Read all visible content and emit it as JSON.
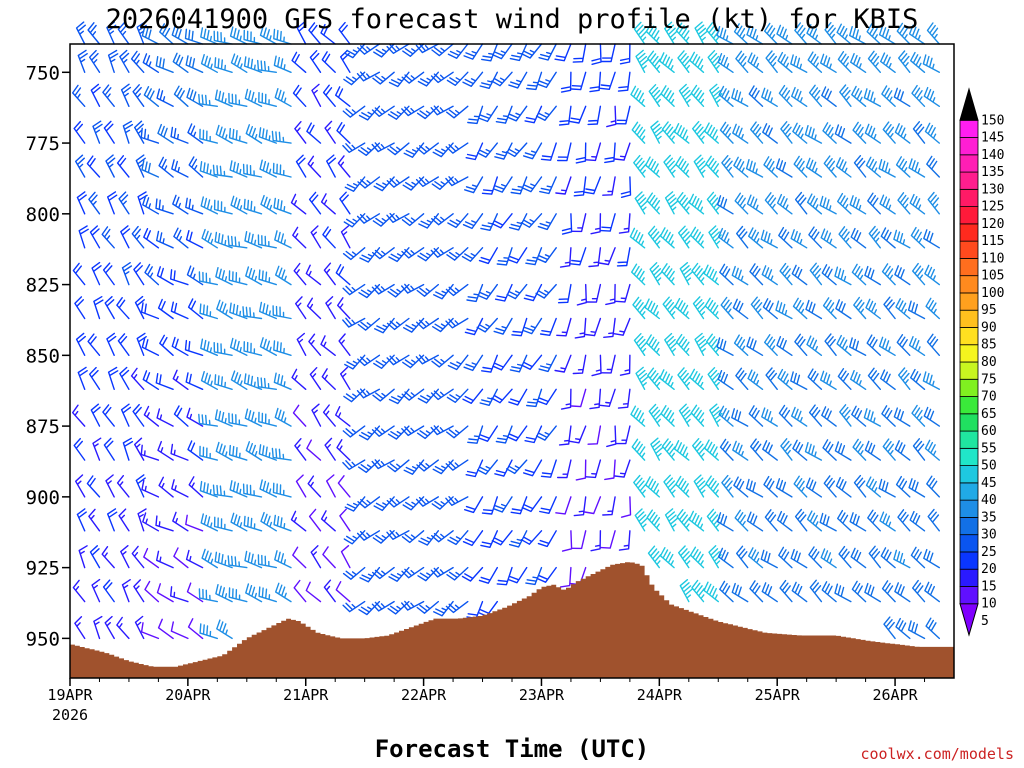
{
  "chart_data": {
    "type": "wind-barb-profile",
    "title": "2026041900 GFS forecast wind profile (kt) for KBIS",
    "xlabel": "Forecast Time (UTC)",
    "ylabel": "",
    "x_start_label_year": "2026",
    "xticks": [
      "19APR",
      "20APR",
      "21APR",
      "22APR",
      "23APR",
      "24APR",
      "25APR",
      "26APR"
    ],
    "xlim_days": [
      0,
      7.5
    ],
    "yticks": [
      750,
      775,
      800,
      825,
      850,
      875,
      900,
      925,
      950
    ],
    "ylim_hpa": [
      740,
      964
    ],
    "wind_levels_hpa": [
      740,
      750,
      762,
      775,
      787,
      800,
      812,
      825,
      837,
      850,
      862,
      875,
      887,
      900,
      912,
      925,
      937,
      950
    ],
    "time_step_hours": 3,
    "wind_regimes": [
      {
        "start_day": 0.0,
        "end_day": 0.7,
        "direction_deg": 330,
        "speed_kt_top": 25,
        "speed_kt_bottom": 15
      },
      {
        "start_day": 0.7,
        "end_day": 1.2,
        "direction_deg": 300,
        "speed_kt_top": 30,
        "speed_kt_bottom": 10
      },
      {
        "start_day": 1.2,
        "end_day": 1.9,
        "direction_deg": 290,
        "speed_kt_top": 35,
        "speed_kt_bottom": 35
      },
      {
        "start_day": 1.9,
        "end_day": 2.4,
        "direction_deg": 320,
        "speed_kt_top": 20,
        "speed_kt_bottom": 10
      },
      {
        "start_day": 2.4,
        "end_day": 3.4,
        "direction_deg": 230,
        "speed_kt_top": 25,
        "speed_kt_bottom": 25
      },
      {
        "start_day": 3.4,
        "end_day": 4.2,
        "direction_deg": 210,
        "speed_kt_top": 25,
        "speed_kt_bottom": 20
      },
      {
        "start_day": 4.2,
        "end_day": 4.8,
        "direction_deg": 190,
        "speed_kt_top": 20,
        "speed_kt_bottom": 10
      },
      {
        "start_day": 4.8,
        "end_day": 5.6,
        "direction_deg": 320,
        "speed_kt_top": 45,
        "speed_kt_bottom": 45
      },
      {
        "start_day": 5.6,
        "end_day": 7.5,
        "direction_deg": 310,
        "speed_kt_top": 35,
        "speed_kt_bottom": 30
      }
    ],
    "terrain_hpa": [
      [
        0.0,
        952
      ],
      [
        0.3,
        955
      ],
      [
        0.5,
        958
      ],
      [
        0.7,
        960
      ],
      [
        0.9,
        960
      ],
      [
        1.1,
        958
      ],
      [
        1.3,
        956
      ],
      [
        1.5,
        950
      ],
      [
        1.7,
        946
      ],
      [
        1.85,
        943
      ],
      [
        1.95,
        944
      ],
      [
        2.1,
        948
      ],
      [
        2.3,
        950
      ],
      [
        2.5,
        950
      ],
      [
        2.7,
        949
      ],
      [
        2.9,
        946
      ],
      [
        3.1,
        943
      ],
      [
        3.3,
        943
      ],
      [
        3.5,
        942
      ],
      [
        3.7,
        939
      ],
      [
        3.9,
        935
      ],
      [
        4.0,
        932
      ],
      [
        4.1,
        931
      ],
      [
        4.2,
        933
      ],
      [
        4.3,
        930
      ],
      [
        4.45,
        927
      ],
      [
        4.6,
        924
      ],
      [
        4.75,
        923
      ],
      [
        4.85,
        924
      ],
      [
        4.95,
        932
      ],
      [
        5.1,
        938
      ],
      [
        5.3,
        941
      ],
      [
        5.5,
        944
      ],
      [
        5.7,
        946
      ],
      [
        5.9,
        948
      ],
      [
        6.2,
        949
      ],
      [
        6.5,
        949
      ],
      [
        6.8,
        951
      ],
      [
        7.0,
        952
      ],
      [
        7.2,
        953
      ],
      [
        7.5,
        953
      ]
    ],
    "colorbar": {
      "min": 5,
      "max": 150,
      "step": 5,
      "labels": [
        5,
        10,
        15,
        20,
        25,
        30,
        35,
        40,
        45,
        50,
        55,
        60,
        65,
        70,
        75,
        80,
        85,
        90,
        95,
        100,
        105,
        110,
        115,
        120,
        125,
        130,
        135,
        140,
        145,
        150
      ],
      "colors": [
        "#8000ff",
        "#6010ff",
        "#2a1aff",
        "#0a36ff",
        "#0a55f0",
        "#1270e6",
        "#1e8ee6",
        "#20aae6",
        "#1ec8e0",
        "#20e6c8",
        "#20e6a0",
        "#20e060",
        "#3aea3a",
        "#80f020",
        "#c8f520",
        "#f5f51e",
        "#ffe020",
        "#ffc01e",
        "#ffa01e",
        "#ff8a1e",
        "#ff6e1e",
        "#ff4a1e",
        "#ff2a1e",
        "#ff1a3a",
        "#ff1a66",
        "#ff1e8e",
        "#ff1eb4",
        "#ff1ed4",
        "#ff1ef0",
        "#000000"
      ]
    },
    "terrain_color": "#a0522d",
    "grid": false
  },
  "footer": {
    "credit": "coolwx.com/models"
  }
}
